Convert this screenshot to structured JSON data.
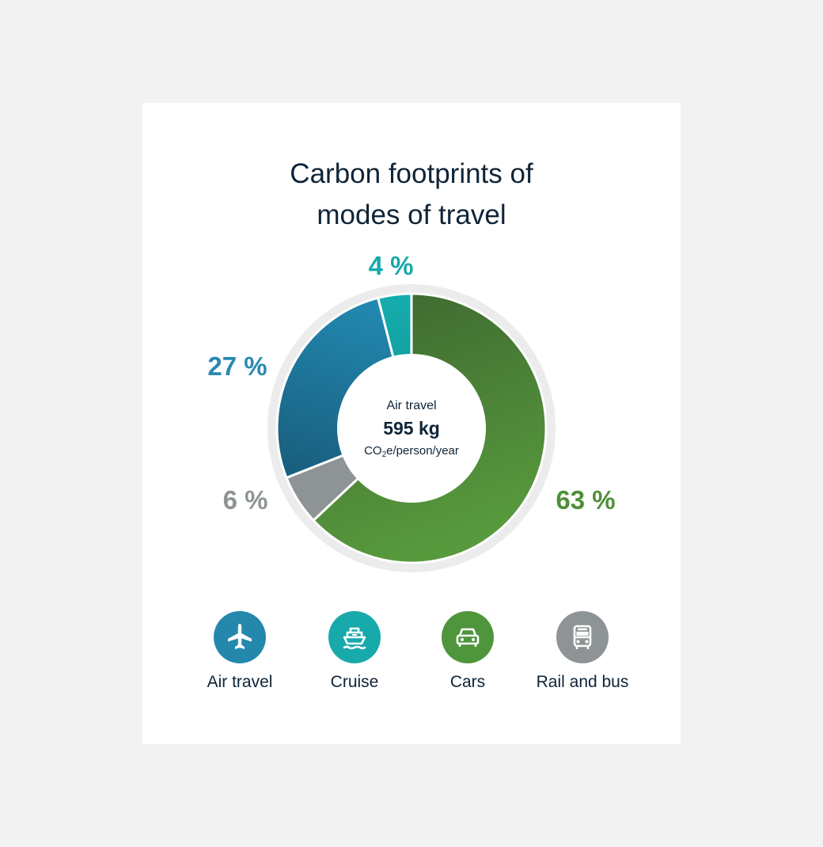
{
  "chart_data": {
    "type": "pie",
    "title": [
      "Carbon footprints of",
      "modes of travel"
    ],
    "categories": [
      "Cars",
      "Rail and bus",
      "Air travel",
      "Cruise"
    ],
    "values": [
      63,
      6,
      27,
      4
    ],
    "value_labels": [
      "63 %",
      "6 %",
      "27 %",
      "4 %"
    ],
    "colors": [
      "#4a8a3a",
      "#8e9495",
      "#2a7fa3",
      "#17a9ab"
    ],
    "label_colors": [
      "#4f8f3a",
      "#8e9495",
      "#2a8ab0",
      "#17a9ab"
    ],
    "center": {
      "label": "Air travel",
      "value": "595 kg",
      "unit_prefix": "CO",
      "unit_sub": "2",
      "unit_suffix": "e/person/year"
    },
    "legend_placement": "bottom"
  },
  "legend": [
    {
      "label": "Air travel",
      "icon": "airplane-icon",
      "color": "#2488ad"
    },
    {
      "label": "Cruise",
      "icon": "ship-icon",
      "color": "#18a9ab"
    },
    {
      "label": "Cars",
      "icon": "car-icon",
      "color": "#4f953c"
    },
    {
      "label": "Rail and bus",
      "icon": "bus-icon",
      "color": "#8e9495"
    }
  ]
}
